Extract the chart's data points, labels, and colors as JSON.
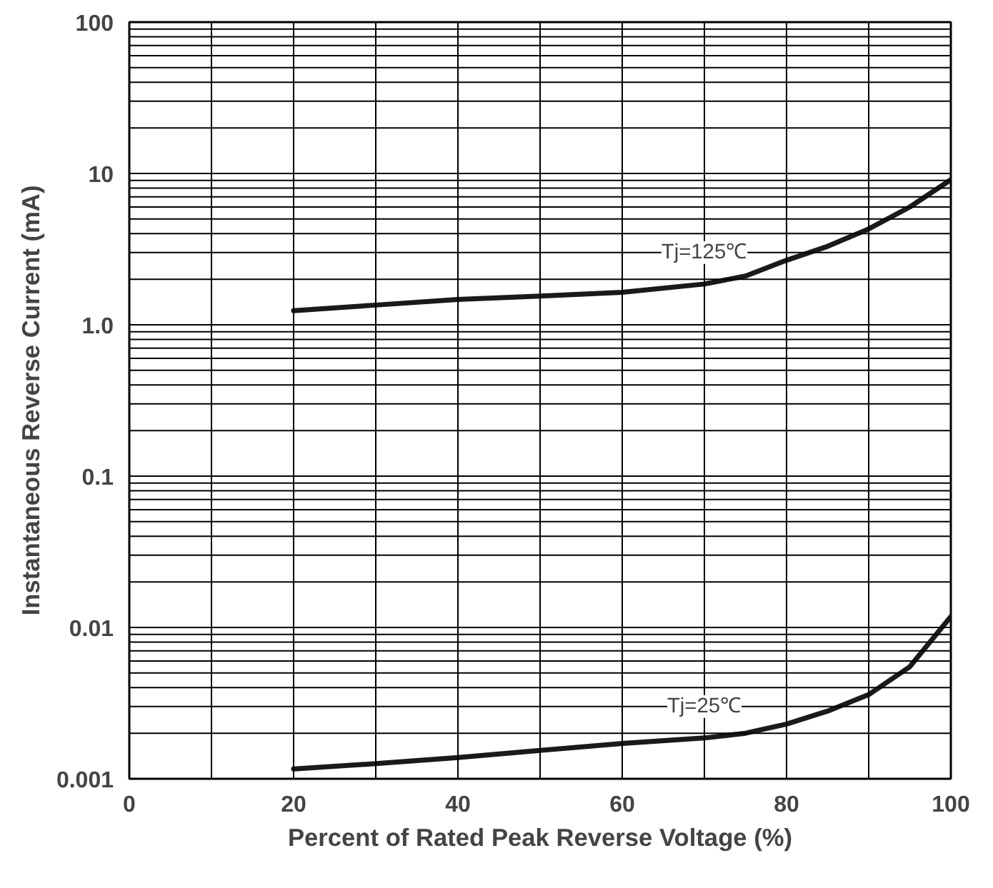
{
  "chart_data": {
    "type": "line",
    "xlabel": "Percent of Rated Peak Reverse Voltage (%)",
    "ylabel": "Instantaneous Reverse Current (mA)",
    "log": "y",
    "grid": true,
    "marker": "none",
    "line_style": "solid",
    "xlim": [
      0,
      100
    ],
    "ylim": [
      0.001,
      100
    ],
    "xticks": [
      0,
      {
        "value": 10,
        "label": null
      },
      20,
      {
        "value": 30,
        "label": null
      },
      40,
      {
        "value": 50,
        "label": null
      },
      60,
      {
        "value": 70,
        "label": null
      },
      80,
      {
        "value": 90,
        "label": null
      },
      100
    ],
    "yticks": [
      {
        "value": 0.001,
        "label": "0.001"
      },
      {
        "value": 0.002,
        "label": null
      },
      {
        "value": 0.003,
        "label": null
      },
      {
        "value": 0.004,
        "label": null
      },
      {
        "value": 0.005,
        "label": null
      },
      {
        "value": 0.006,
        "label": null
      },
      {
        "value": 0.007,
        "label": null
      },
      {
        "value": 0.008,
        "label": null
      },
      {
        "value": 0.009,
        "label": null
      },
      {
        "value": 0.01,
        "label": "0.01"
      },
      {
        "value": 0.02,
        "label": null
      },
      {
        "value": 0.03,
        "label": null
      },
      {
        "value": 0.04,
        "label": null
      },
      {
        "value": 0.05,
        "label": null
      },
      {
        "value": 0.06,
        "label": null
      },
      {
        "value": 0.07,
        "label": null
      },
      {
        "value": 0.08,
        "label": null
      },
      {
        "value": 0.09,
        "label": null
      },
      {
        "value": 0.1,
        "label": "0.1"
      },
      {
        "value": 0.2,
        "label": null
      },
      {
        "value": 0.3,
        "label": null
      },
      {
        "value": 0.4,
        "label": null
      },
      {
        "value": 0.5,
        "label": null
      },
      {
        "value": 0.6,
        "label": null
      },
      {
        "value": 0.7,
        "label": null
      },
      {
        "value": 0.8,
        "label": null
      },
      {
        "value": 0.9,
        "label": null
      },
      {
        "value": 1,
        "label": "1.0"
      },
      {
        "value": 2,
        "label": null
      },
      {
        "value": 3,
        "label": null
      },
      {
        "value": 4,
        "label": null
      },
      {
        "value": 5,
        "label": null
      },
      {
        "value": 6,
        "label": null
      },
      {
        "value": 7,
        "label": null
      },
      {
        "value": 8,
        "label": null
      },
      {
        "value": 9,
        "label": null
      },
      {
        "value": 10,
        "label": "10"
      },
      {
        "value": 20,
        "label": null
      },
      {
        "value": 30,
        "label": null
      },
      {
        "value": 40,
        "label": null
      },
      {
        "value": 50,
        "label": null
      },
      {
        "value": 60,
        "label": null
      },
      {
        "value": 70,
        "label": null
      },
      {
        "value": 80,
        "label": null
      },
      {
        "value": 90,
        "label": null
      },
      {
        "value": 100,
        "label": "100"
      }
    ],
    "x": [
      20,
      30,
      40,
      50,
      60,
      70,
      75,
      80,
      85,
      90,
      95,
      100
    ],
    "series": [
      {
        "name": "Tj=125℃",
        "color": "#1a1a1a",
        "values": [
          1.24,
          1.35,
          1.47,
          1.55,
          1.64,
          1.86,
          2.1,
          2.67,
          3.3,
          4.3,
          6.0,
          9.1
        ]
      },
      {
        "name": "Tj=25℃",
        "color": "#1a1a1a",
        "values": [
          0.00116,
          0.00126,
          0.00138,
          0.00154,
          0.00171,
          0.00186,
          0.002,
          0.0023,
          0.0028,
          0.0036,
          0.0055,
          0.0118
        ]
      }
    ]
  }
}
